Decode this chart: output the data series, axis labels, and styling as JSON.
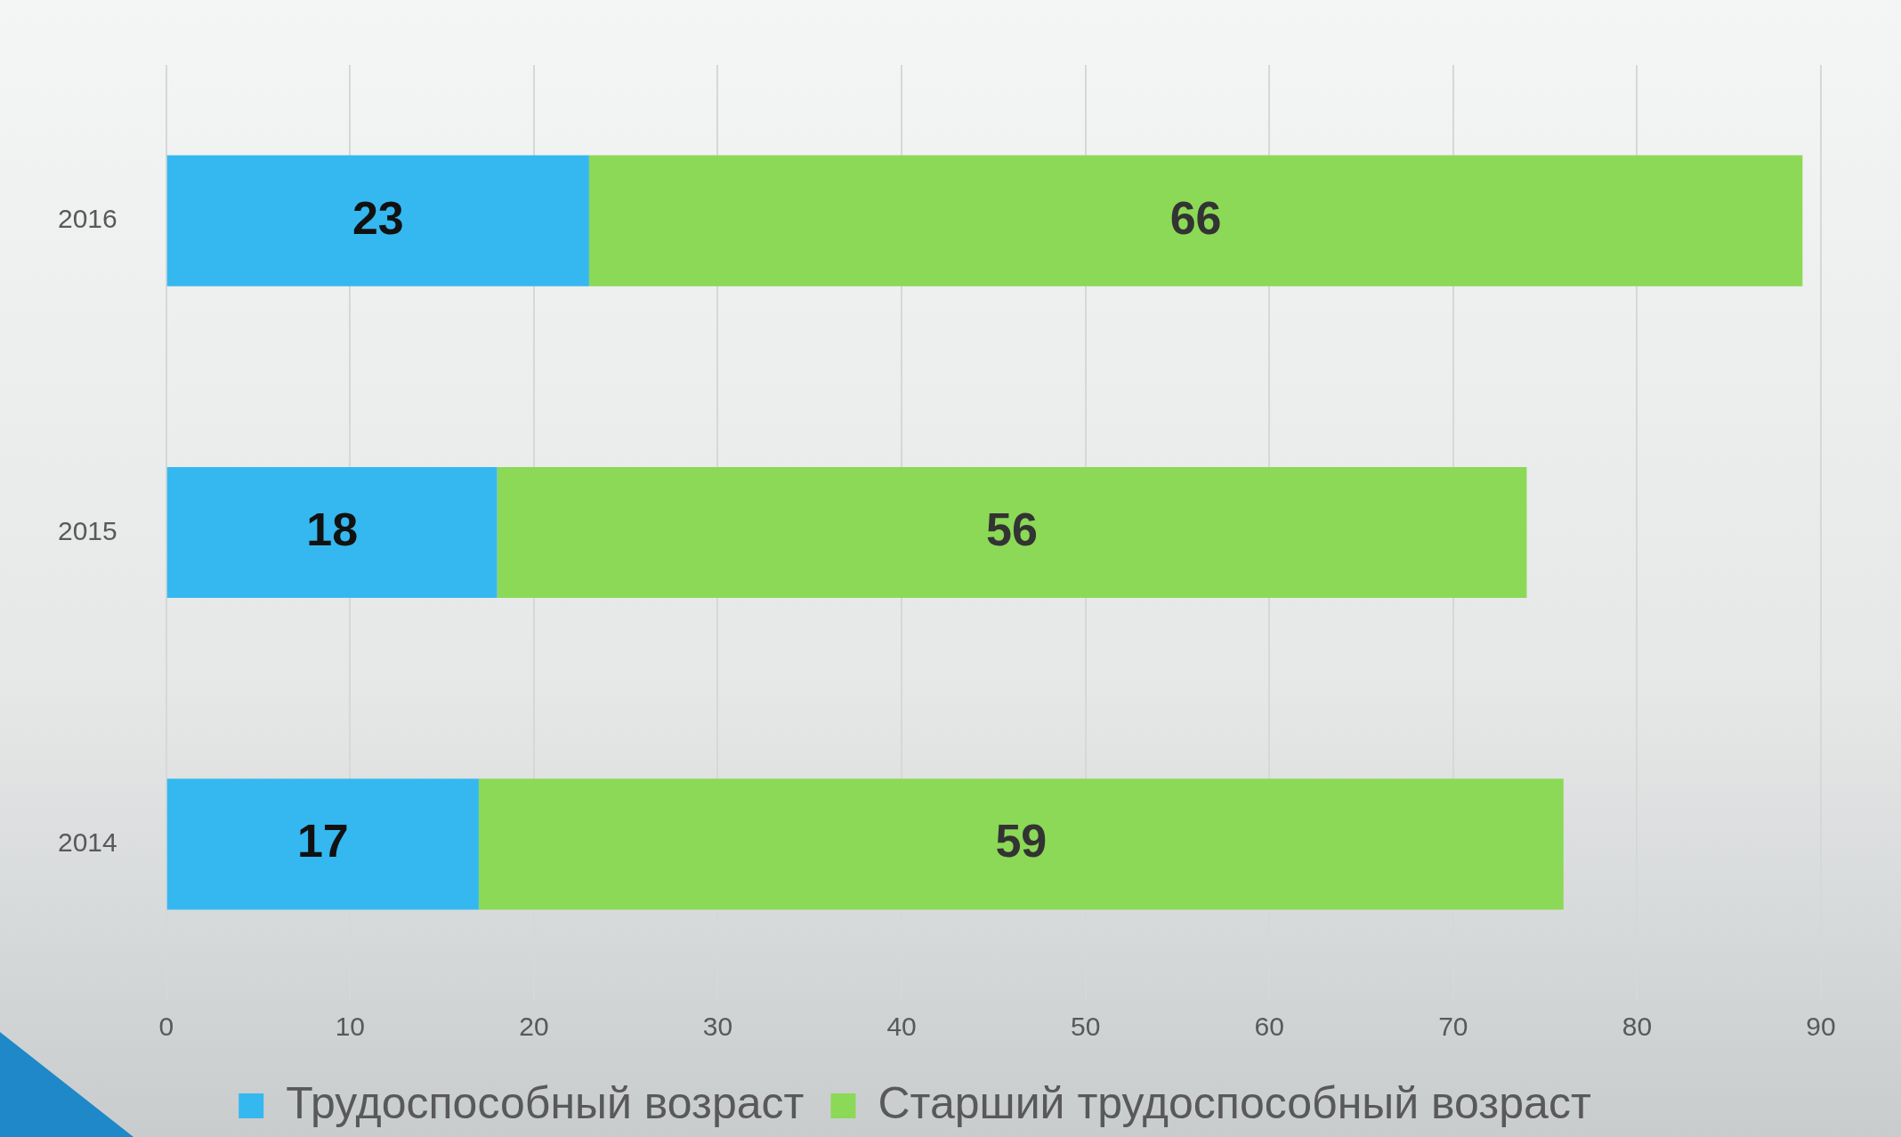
{
  "chart_data": {
    "type": "bar",
    "orientation": "horizontal",
    "stacked": true,
    "categories": [
      "2016",
      "2015",
      "2014"
    ],
    "series": [
      {
        "name": "Трудоспособный возраст",
        "color": "#35b8f0",
        "values": [
          23,
          18,
          17
        ]
      },
      {
        "name": "Старший трудоспособный возраст",
        "color": "#8bd957",
        "values": [
          66,
          56,
          59
        ]
      }
    ],
    "xlim": [
      0,
      90
    ],
    "xticks": [
      0,
      10,
      20,
      30,
      40,
      50,
      60,
      70,
      80,
      90
    ],
    "grid": "x",
    "legend": "bottom",
    "data_labels": true
  }
}
